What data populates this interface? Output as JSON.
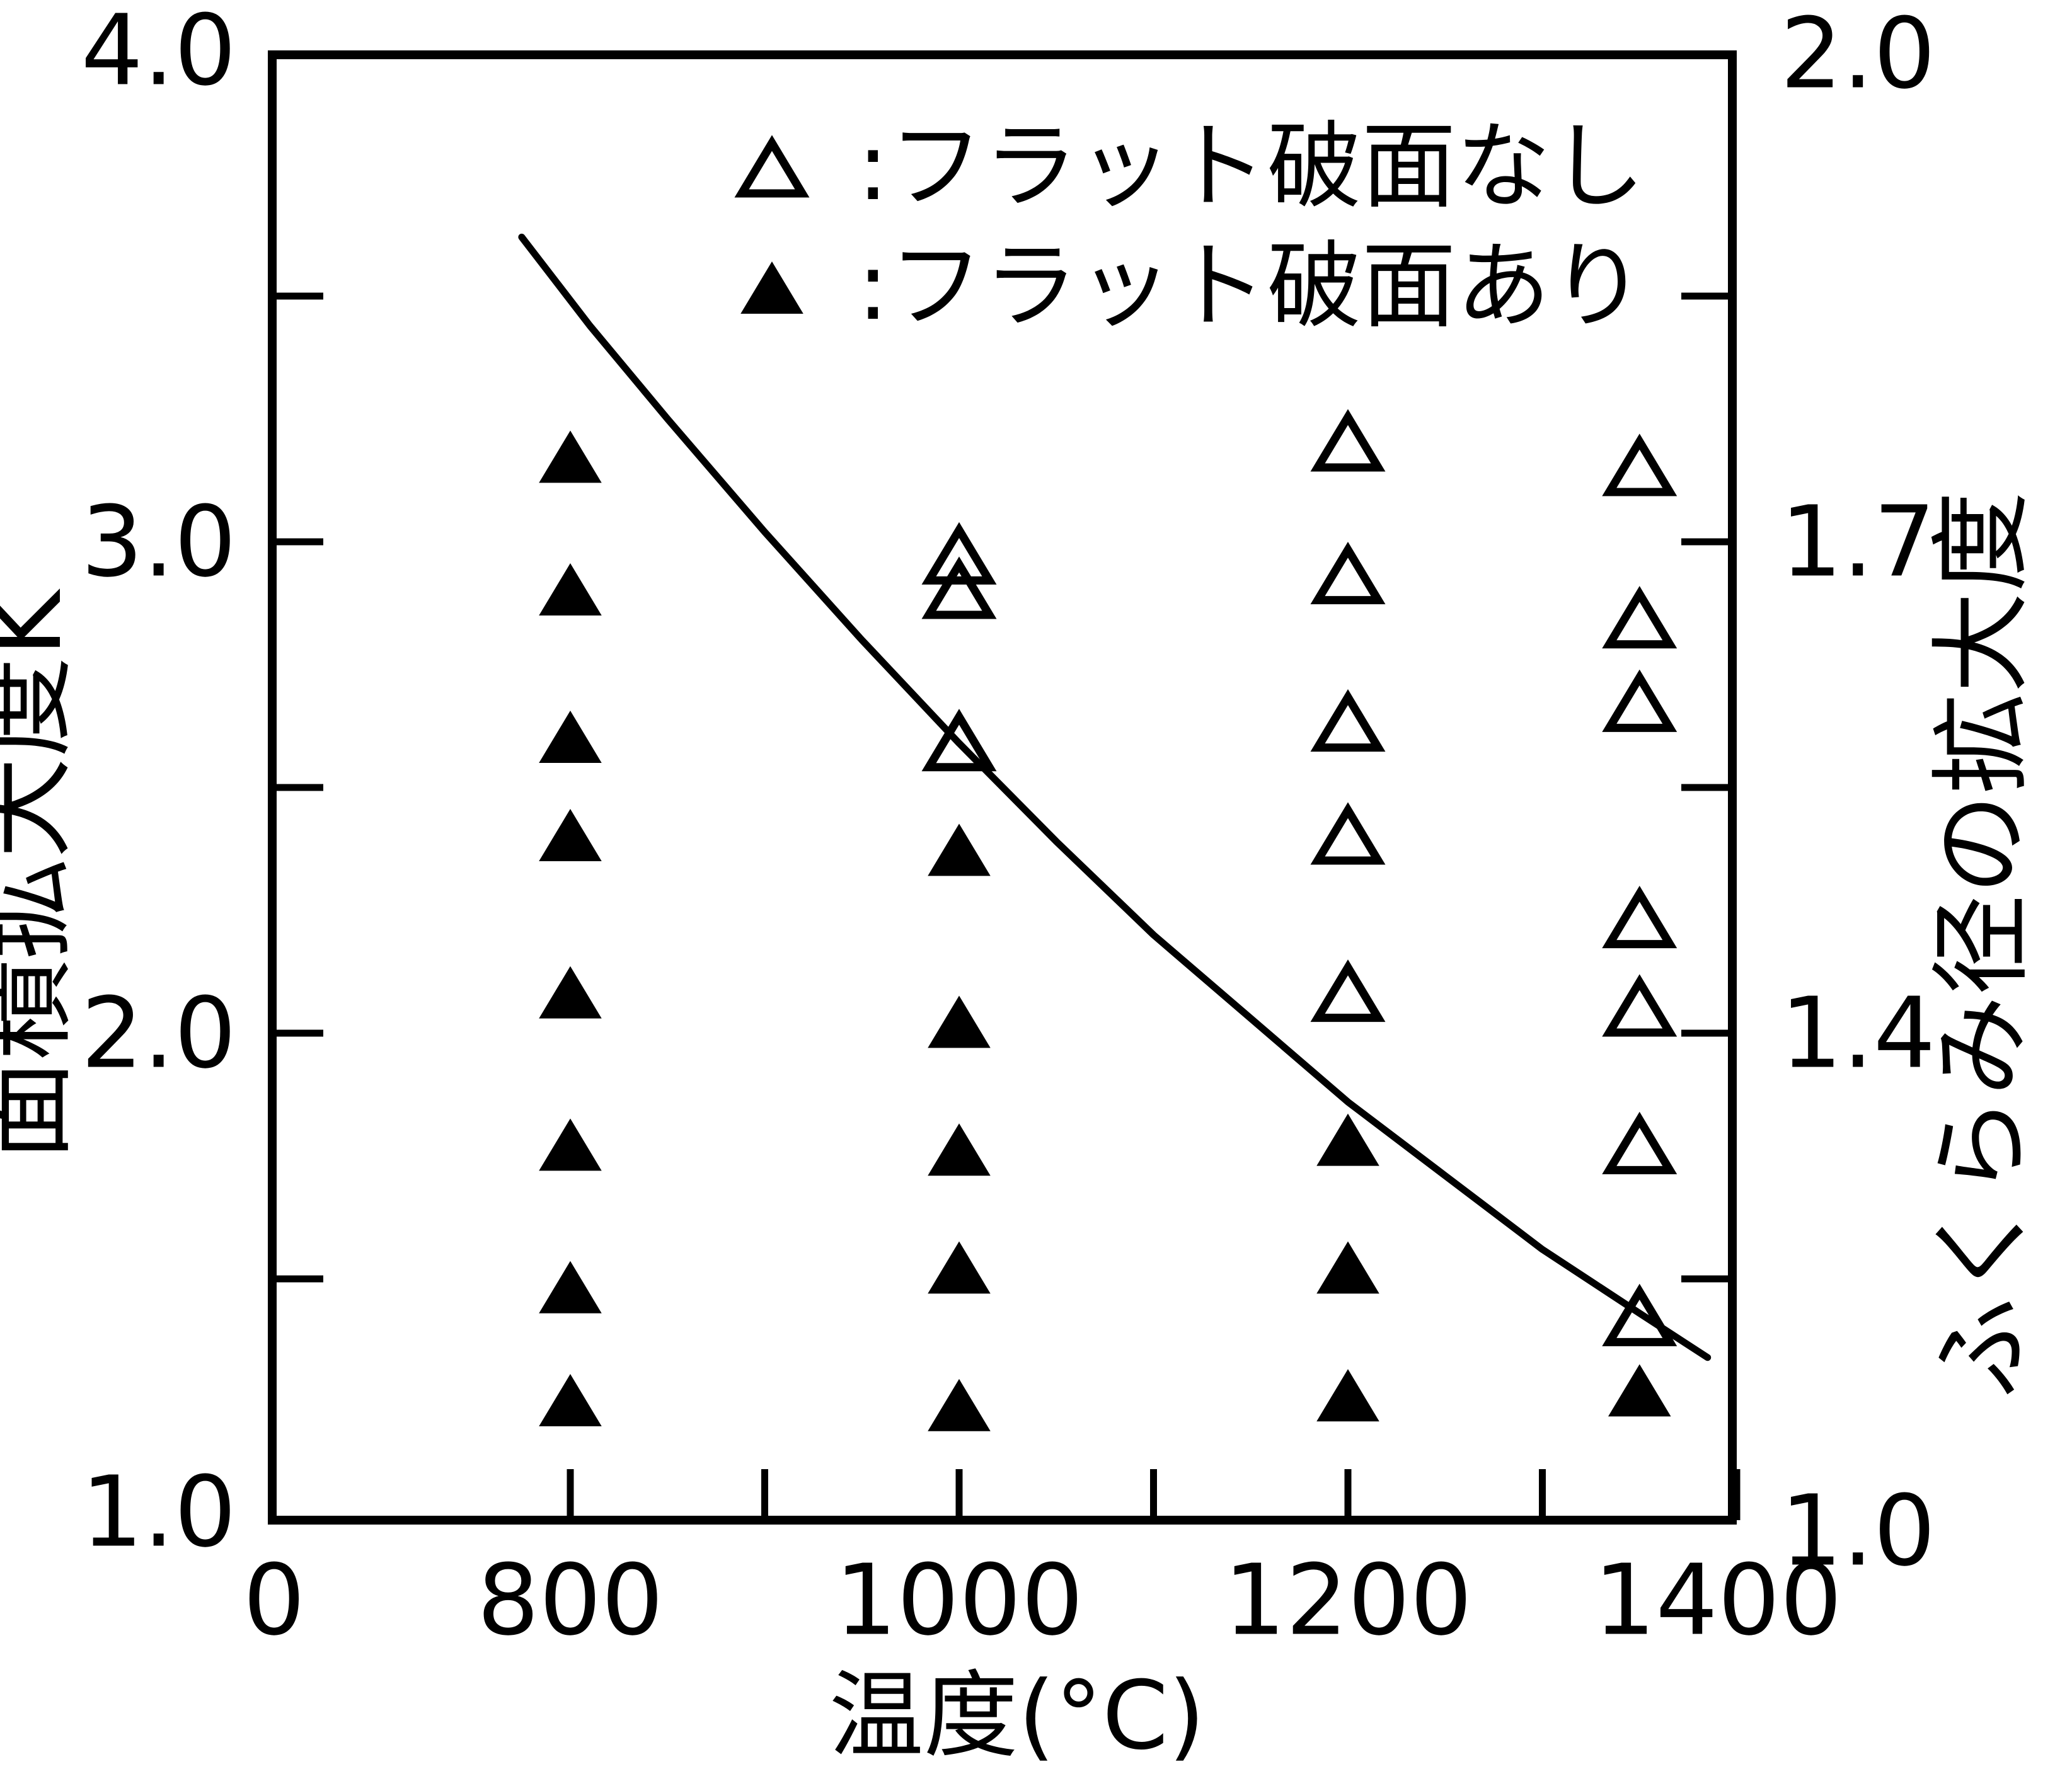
{
  "page": {
    "background": "#ffffff",
    "ink_color": "#000000"
  },
  "chart_data": {
    "type": "scatter",
    "title": "",
    "xlabel": "温度(°C)",
    "ylabel_left": "面積拡大度K",
    "ylabel_right": "ふくらみ径の拡大度",
    "x_axis": {
      "unit": "°C",
      "origin_label": "0",
      "labeled_ticks": [
        800,
        1000,
        1200,
        1400
      ],
      "minor_ticks": [
        900,
        1100,
        1300
      ],
      "note": "scale compressed between 0 and 800"
    },
    "y_axis_left": {
      "range": [
        1.0,
        4.0
      ],
      "labeled_ticks": [
        "4.0",
        "3.0",
        "2.0",
        "1.0"
      ],
      "labeled_tick_values": [
        4.0,
        3.0,
        2.0,
        1.0
      ],
      "minor_ticks": [
        3.5,
        2.5,
        1.5
      ]
    },
    "y_axis_right": {
      "labels": [
        "2.0",
        "1.7",
        "1.4",
        "1.0"
      ],
      "label_positions_in_K": [
        4.0,
        3.0,
        2.0,
        1.0
      ],
      "minor_tick_positions_in_K": [
        3.5,
        2.5,
        1.5
      ],
      "relation": "right value = sqrt(left K)"
    },
    "legend": [
      {
        "marker": "open-triangle",
        "label": ":フラット破面なし"
      },
      {
        "marker": "filled-triangle",
        "label": ":フラット破面あり"
      }
    ],
    "series": [
      {
        "name": "フラット破面なし",
        "marker": "open-triangle",
        "points_t_k": [
          [
            1000,
            2.97
          ],
          [
            1000,
            2.9
          ],
          [
            1000,
            2.59
          ],
          [
            1200,
            3.2
          ],
          [
            1200,
            2.93
          ],
          [
            1200,
            2.63
          ],
          [
            1200,
            2.4
          ],
          [
            1200,
            2.08
          ],
          [
            1350,
            3.15
          ],
          [
            1350,
            2.84
          ],
          [
            1350,
            2.67
          ],
          [
            1350,
            2.23
          ],
          [
            1350,
            2.05
          ],
          [
            1350,
            1.77
          ],
          [
            1350,
            1.42
          ]
        ]
      },
      {
        "name": "フラット破面あり",
        "marker": "filled-triangle",
        "points_t_k": [
          [
            800,
            3.17
          ],
          [
            800,
            2.9
          ],
          [
            800,
            2.6
          ],
          [
            800,
            2.4
          ],
          [
            800,
            2.08
          ],
          [
            800,
            1.77
          ],
          [
            800,
            1.48
          ],
          [
            800,
            1.25
          ],
          [
            1000,
            2.37
          ],
          [
            1000,
            2.02
          ],
          [
            1000,
            1.76
          ],
          [
            1000,
            1.52
          ],
          [
            1000,
            1.24
          ],
          [
            1200,
            1.78
          ],
          [
            1200,
            1.52
          ],
          [
            1200,
            1.26
          ],
          [
            1350,
            1.27
          ]
        ]
      }
    ],
    "boundary_curve": {
      "points_t_k": [
        [
          775,
          3.62
        ],
        [
          810,
          3.44
        ],
        [
          850,
          3.25
        ],
        [
          900,
          3.02
        ],
        [
          950,
          2.8
        ],
        [
          1000,
          2.59
        ],
        [
          1050,
          2.39
        ],
        [
          1100,
          2.2
        ],
        [
          1150,
          2.03
        ],
        [
          1200,
          1.86
        ],
        [
          1250,
          1.71
        ],
        [
          1300,
          1.56
        ],
        [
          1350,
          1.43
        ],
        [
          1385,
          1.34
        ]
      ]
    }
  }
}
